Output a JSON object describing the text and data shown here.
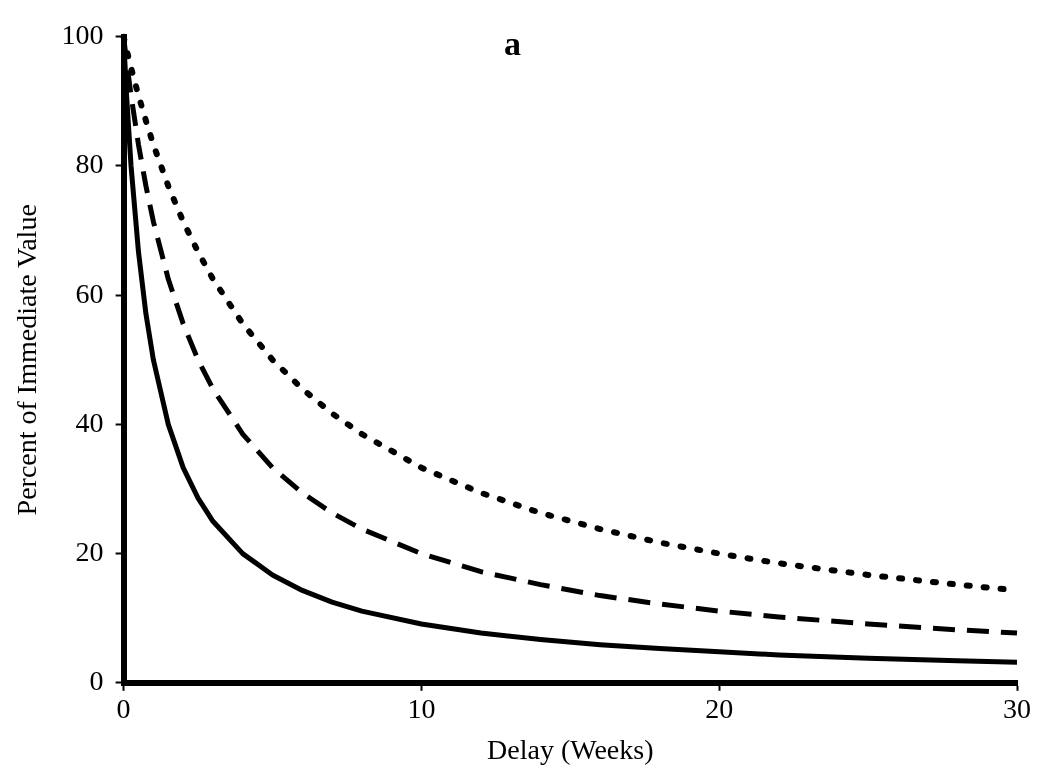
{
  "chart_data": {
    "type": "line",
    "title": "a",
    "xlabel": "Delay (Weeks)",
    "ylabel": "Percent of Immediate Value",
    "x": [
      0,
      0.1,
      0.25,
      0.5,
      0.75,
      1,
      1.5,
      2,
      2.5,
      3,
      4,
      5,
      6,
      7,
      8,
      10,
      12,
      14,
      16,
      18,
      20,
      22,
      25,
      28,
      30
    ],
    "xlim": [
      0,
      30
    ],
    "xticks": [
      0,
      10,
      20,
      30
    ],
    "ylim": [
      0,
      100
    ],
    "yticks": [
      0,
      20,
      40,
      60,
      80,
      100
    ],
    "grid": false,
    "legend": false,
    "marker": "none",
    "series": [
      {
        "color": "#000000",
        "line_style": "solid",
        "values": [
          100,
          90.9,
          80,
          66.7,
          57.1,
          50,
          40,
          33.3,
          28.6,
          25,
          20,
          16.7,
          14.3,
          12.5,
          11.1,
          9.1,
          7.7,
          6.7,
          5.9,
          5.3,
          4.8,
          4.3,
          3.8,
          3.4,
          3.2
        ]
      },
      {
        "color": "#000000",
        "line_style": "dashed",
        "values": [
          100,
          96.2,
          90.9,
          83.3,
          76.9,
          71.4,
          62.5,
          55.6,
          50,
          45.5,
          38.5,
          33.3,
          29.4,
          26.3,
          23.8,
          20,
          17.2,
          15.2,
          13.5,
          12.2,
          11.1,
          10.2,
          9.1,
          8.2,
          7.7
        ]
      },
      {
        "color": "#000000",
        "line_style": "dotted",
        "values": [
          100,
          98,
          95.2,
          90.9,
          87,
          83.3,
          76.9,
          71.4,
          66.7,
          62.5,
          55.6,
          50,
          45.5,
          41.7,
          38.5,
          33.3,
          29.4,
          26.3,
          23.8,
          21.7,
          20,
          18.5,
          16.7,
          15.2,
          14.3
        ]
      }
    ]
  }
}
